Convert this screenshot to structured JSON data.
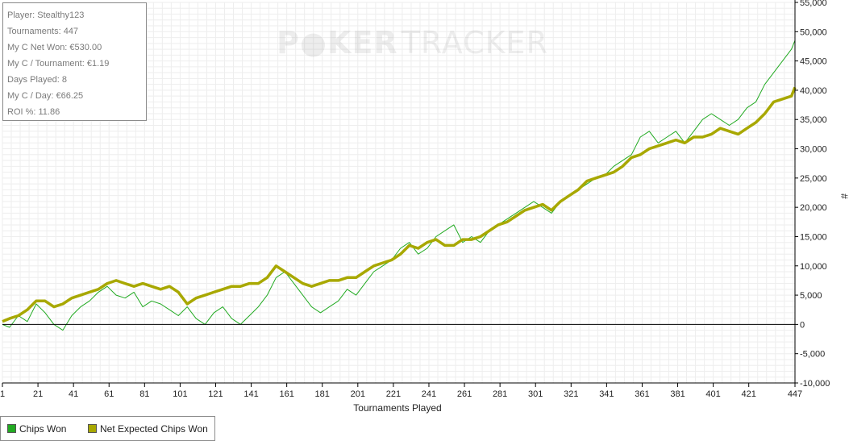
{
  "stats": {
    "player": "Player: Stealthy123",
    "tournaments": "Tournaments: 447",
    "net_won": "My C Net Won: €530.00",
    "per_tournament": "My C / Tournament: €1.19",
    "days_played": "Days Played: 8",
    "per_day": "My C / Day: €66.25",
    "roi": "ROI %: 11.86"
  },
  "watermark": {
    "part1": "P",
    "part2": "KER",
    "part3": "TRACKER"
  },
  "legend": {
    "series1": "Chips Won",
    "series2": "Net Expected Chips Won"
  },
  "colors": {
    "chips_won": "#22aa22",
    "net_expected": "#a8a800",
    "zero_line": "#000000",
    "grid": "#eeeeee"
  },
  "chart_data": {
    "type": "line",
    "xlabel": "Tournaments Played",
    "ylabel": "#",
    "xlim": [
      1,
      447
    ],
    "ylim": [
      -10000,
      55000
    ],
    "x_ticks": [
      1,
      21,
      41,
      61,
      81,
      101,
      121,
      141,
      161,
      181,
      201,
      221,
      241,
      261,
      281,
      301,
      321,
      341,
      361,
      381,
      401,
      421,
      447
    ],
    "y_ticks": [
      -10000,
      -5000,
      0,
      5000,
      10000,
      15000,
      20000,
      25000,
      30000,
      35000,
      40000,
      45000,
      50000,
      55000
    ],
    "y_tick_labels": [
      "-10,000",
      "-5,000",
      "0",
      "5,000",
      "10,000",
      "15,000",
      "20,000",
      "25,000",
      "30,000",
      "35,000",
      "40,000",
      "45,000",
      "50,000",
      "55,000"
    ],
    "grid": true,
    "legend_position": "bottom-left",
    "series": [
      {
        "name": "Chips Won",
        "x": [
          1,
          5,
          10,
          15,
          20,
          25,
          30,
          35,
          40,
          45,
          50,
          55,
          60,
          65,
          70,
          75,
          80,
          85,
          90,
          95,
          100,
          105,
          110,
          115,
          120,
          125,
          130,
          135,
          140,
          145,
          150,
          155,
          160,
          165,
          170,
          175,
          180,
          185,
          190,
          195,
          200,
          205,
          210,
          215,
          220,
          225,
          230,
          235,
          240,
          245,
          250,
          255,
          260,
          265,
          270,
          275,
          280,
          285,
          290,
          295,
          300,
          305,
          310,
          315,
          320,
          325,
          330,
          335,
          340,
          345,
          350,
          355,
          360,
          365,
          370,
          375,
          380,
          385,
          390,
          395,
          400,
          405,
          410,
          415,
          420,
          425,
          430,
          435,
          440,
          445,
          447
        ],
        "values": [
          0,
          -500,
          1500,
          500,
          3500,
          2000,
          0,
          -1000,
          1500,
          3000,
          4000,
          5500,
          6500,
          5000,
          4500,
          5500,
          3000,
          4000,
          3500,
          2500,
          1500,
          3000,
          1000,
          0,
          2000,
          3000,
          1000,
          0,
          1500,
          3000,
          5000,
          8000,
          9000,
          7000,
          5000,
          3000,
          2000,
          3000,
          4000,
          6000,
          5000,
          7000,
          9000,
          10000,
          11000,
          13000,
          14000,
          12000,
          13000,
          15000,
          16000,
          17000,
          14000,
          15000,
          14000,
          16000,
          17000,
          18000,
          19000,
          20000,
          21000,
          20000,
          19000,
          21000,
          22000,
          23000,
          24000,
          25000,
          25500,
          27000,
          28000,
          29000,
          32000,
          33000,
          31000,
          32000,
          33000,
          31000,
          33000,
          35000,
          36000,
          35000,
          34000,
          35000,
          37000,
          38000,
          41000,
          43000,
          45000,
          47000,
          48500
        ]
      },
      {
        "name": "Net Expected Chips Won",
        "x": [
          1,
          5,
          10,
          15,
          20,
          25,
          30,
          35,
          40,
          45,
          50,
          55,
          60,
          65,
          70,
          75,
          80,
          85,
          90,
          95,
          100,
          105,
          110,
          115,
          120,
          125,
          130,
          135,
          140,
          145,
          150,
          155,
          160,
          165,
          170,
          175,
          180,
          185,
          190,
          195,
          200,
          205,
          210,
          215,
          220,
          225,
          230,
          235,
          240,
          245,
          250,
          255,
          260,
          265,
          270,
          275,
          280,
          285,
          290,
          295,
          300,
          305,
          310,
          315,
          320,
          325,
          330,
          335,
          340,
          345,
          350,
          355,
          360,
          365,
          370,
          375,
          380,
          385,
          390,
          395,
          400,
          405,
          410,
          415,
          420,
          425,
          430,
          435,
          440,
          445,
          447
        ],
        "values": [
          500,
          1000,
          1500,
          2500,
          4000,
          4000,
          3000,
          3500,
          4500,
          5000,
          5500,
          6000,
          7000,
          7500,
          7000,
          6500,
          7000,
          6500,
          6000,
          6500,
          5500,
          3500,
          4500,
          5000,
          5500,
          6000,
          6500,
          6500,
          7000,
          7000,
          8000,
          10000,
          9000,
          8000,
          7000,
          6500,
          7000,
          7500,
          7500,
          8000,
          8000,
          9000,
          10000,
          10500,
          11000,
          12000,
          13500,
          13000,
          14000,
          14500,
          13500,
          13500,
          14500,
          14500,
          15000,
          16000,
          17000,
          17500,
          18500,
          19500,
          20000,
          20500,
          19500,
          21000,
          22000,
          23000,
          24500,
          25000,
          25500,
          26000,
          27000,
          28500,
          29000,
          30000,
          30500,
          31000,
          31500,
          31000,
          32000,
          32000,
          32500,
          33500,
          33000,
          32500,
          33500,
          34500,
          36000,
          38000,
          38500,
          39000,
          40500
        ]
      }
    ]
  }
}
